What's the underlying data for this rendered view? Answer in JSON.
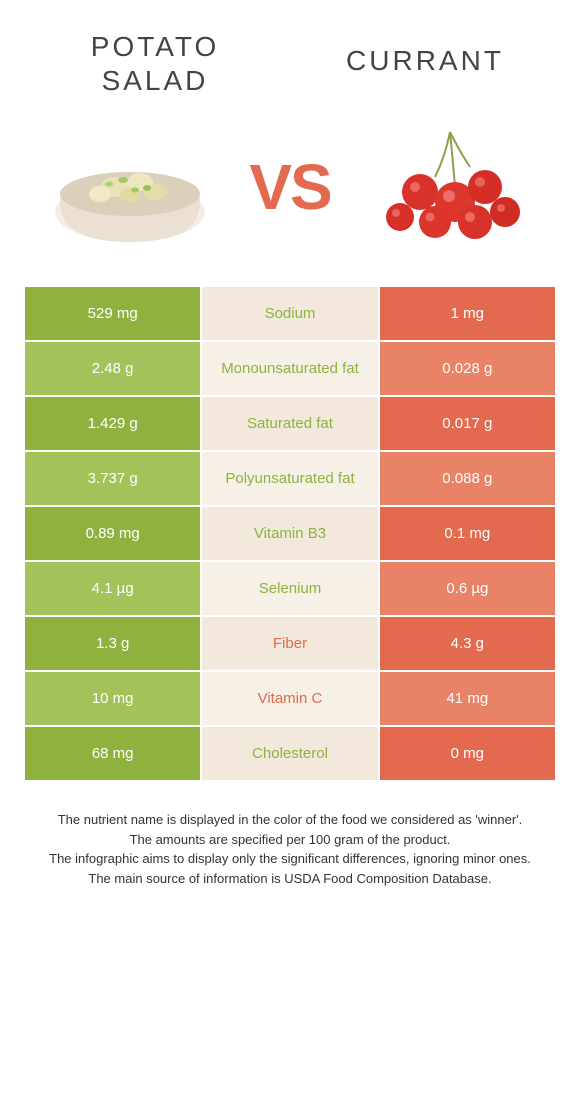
{
  "colors": {
    "left_bg": "#8fb23f",
    "left_light": "#a3c259",
    "right_bg": "#e36a4f",
    "right_light": "#e88368",
    "mid_bg": "#f2e9dc",
    "mid_light": "#f7f0e6",
    "vs": "#e36a4f",
    "title": "#444444",
    "footer": "#333333"
  },
  "left_food": {
    "title_line1": "POTATO",
    "title_line2": "SALAD"
  },
  "right_food": {
    "title": "CURRANT"
  },
  "vs_label": "VS",
  "rows": [
    {
      "left": "529 mg",
      "label": "Sodium",
      "right": "1 mg",
      "winner": "left"
    },
    {
      "left": "2.48 g",
      "label": "Monounsaturated fat",
      "right": "0.028 g",
      "winner": "left"
    },
    {
      "left": "1.429 g",
      "label": "Saturated fat",
      "right": "0.017 g",
      "winner": "left"
    },
    {
      "left": "3.737 g",
      "label": "Polyunsaturated fat",
      "right": "0.088 g",
      "winner": "left"
    },
    {
      "left": "0.89 mg",
      "label": "Vitamin B3",
      "right": "0.1 mg",
      "winner": "left"
    },
    {
      "left": "4.1 µg",
      "label": "Selenium",
      "right": "0.6 µg",
      "winner": "left"
    },
    {
      "left": "1.3 g",
      "label": "Fiber",
      "right": "4.3 g",
      "winner": "right"
    },
    {
      "left": "10 mg",
      "label": "Vitamin C",
      "right": "41 mg",
      "winner": "right"
    },
    {
      "left": "68 mg",
      "label": "Cholesterol",
      "right": "0 mg",
      "winner": "left"
    }
  ],
  "footer_lines": [
    "The nutrient name is displayed in the color of the food we considered as 'winner'.",
    "The amounts are specified per 100 gram of the product.",
    "The infographic aims to display only the significant differences, ignoring minor ones.",
    "The main source of information is USDA Food Composition Database."
  ]
}
